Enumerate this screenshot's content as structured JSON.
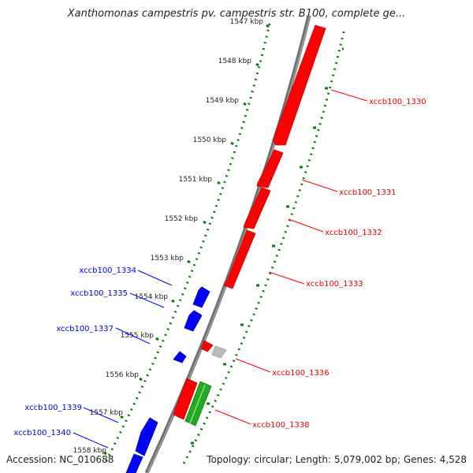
{
  "title": "Xanthomonas campestris pv. campestris str. B100, complete ge...",
  "footer": {
    "accession_label": "Accession:",
    "accession": "NC_010688",
    "topology_label": "Topology:",
    "topology": "circular",
    "length_label": "Length:",
    "length": "5,079,002 bp",
    "genes_label": "Genes:",
    "genes": "4,528"
  },
  "colors": {
    "forward_gene": "#ff0000",
    "reverse_gene": "#0000ff",
    "rna_gene": "#22aa22",
    "other_gene": "#bbbbbb",
    "backbone": "#777777",
    "tick_track": "#117711"
  },
  "kbp_labels": [
    "1547 kbp",
    "1548 kbp",
    "1549 kbp",
    "1550 kbp",
    "1551 kbp",
    "1552 kbp",
    "1553 kbp",
    "1554 kbp",
    "1555 kbp",
    "1556 kbp",
    "1557 kbp",
    "1558 kbp"
  ],
  "genes": [
    {
      "label": "xccb100_1330",
      "strand": "forward",
      "color": "red"
    },
    {
      "label": "xccb100_1331",
      "strand": "forward",
      "color": "red"
    },
    {
      "label": "xccb100_1332",
      "strand": "forward",
      "color": "red"
    },
    {
      "label": "xccb100_1333",
      "strand": "forward",
      "color": "red"
    },
    {
      "label": "xccb100_1334",
      "strand": "reverse",
      "color": "blue"
    },
    {
      "label": "xccb100_1335",
      "strand": "reverse",
      "color": "blue"
    },
    {
      "label": "xccb100_1336",
      "strand": "forward",
      "color": "red"
    },
    {
      "label": "xccb100_1337",
      "strand": "reverse",
      "color": "blue"
    },
    {
      "label": "xccb100_1338",
      "strand": "forward",
      "color": "red"
    },
    {
      "label": "xccb100_1339",
      "strand": "reverse",
      "color": "blue"
    },
    {
      "label": "xccb100_1340",
      "strand": "reverse",
      "color": "blue"
    }
  ]
}
